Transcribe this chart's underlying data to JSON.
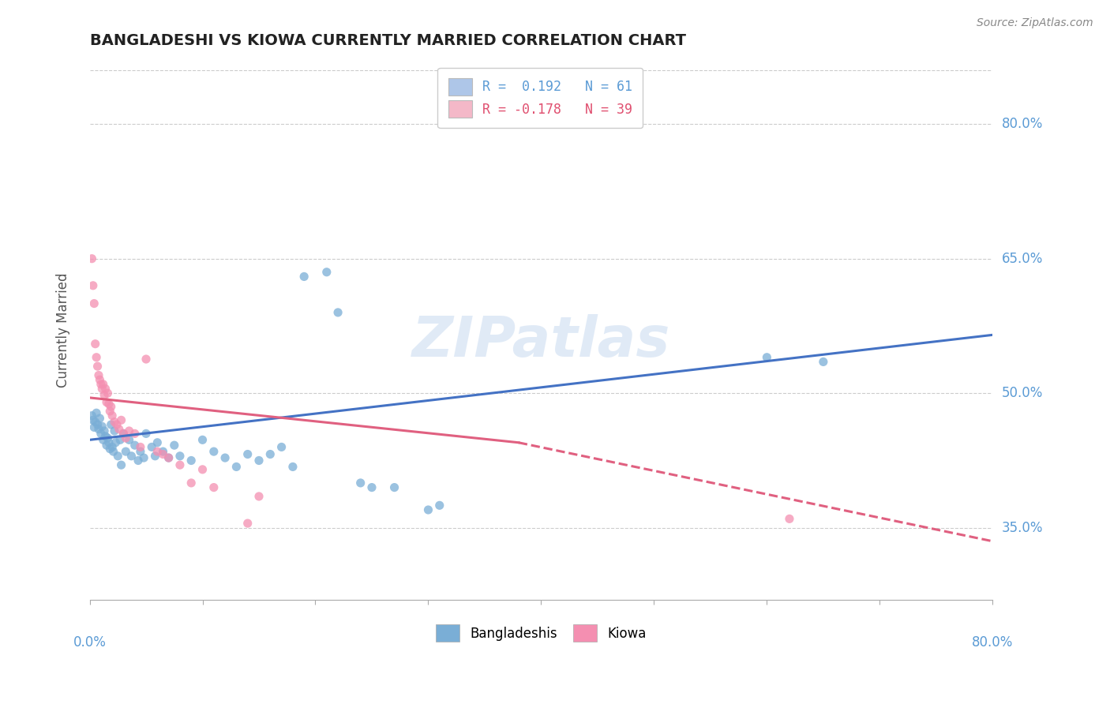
{
  "title": "BANGLADESHI VS KIOWA CURRENTLY MARRIED CORRELATION CHART",
  "source": "Source: ZipAtlas.com",
  "ylabel": "Currently Married",
  "y_ticks": [
    0.35,
    0.5,
    0.65,
    0.8
  ],
  "y_tick_labels": [
    "35.0%",
    "50.0%",
    "65.0%",
    "80.0%"
  ],
  "x_range": [
    0.0,
    0.8
  ],
  "y_range": [
    0.27,
    0.87
  ],
  "legend_entries": [
    {
      "label": "R =  0.192   N = 61",
      "color": "#aec6e8"
    },
    {
      "label": "R = -0.178   N = 39",
      "color": "#f4b8c8"
    }
  ],
  "legend_bottom": [
    "Bangladeshis",
    "Kiowa"
  ],
  "blue_scatter_color": "#7aaed6",
  "pink_scatter_color": "#f48fb1",
  "blue_line_color": "#4472c4",
  "pink_line_color": "#e06080",
  "watermark": "ZIPatlas",
  "blue_points": [
    [
      0.002,
      0.475
    ],
    [
      0.003,
      0.47
    ],
    [
      0.004,
      0.462
    ],
    [
      0.005,
      0.468
    ],
    [
      0.006,
      0.478
    ],
    [
      0.007,
      0.465
    ],
    [
      0.008,
      0.46
    ],
    [
      0.009,
      0.472
    ],
    [
      0.01,
      0.455
    ],
    [
      0.011,
      0.463
    ],
    [
      0.012,
      0.448
    ],
    [
      0.013,
      0.458
    ],
    [
      0.014,
      0.452
    ],
    [
      0.015,
      0.442
    ],
    [
      0.016,
      0.45
    ],
    [
      0.017,
      0.445
    ],
    [
      0.018,
      0.438
    ],
    [
      0.019,
      0.465
    ],
    [
      0.02,
      0.44
    ],
    [
      0.021,
      0.435
    ],
    [
      0.022,
      0.458
    ],
    [
      0.023,
      0.445
    ],
    [
      0.025,
      0.43
    ],
    [
      0.027,
      0.448
    ],
    [
      0.028,
      0.42
    ],
    [
      0.03,
      0.455
    ],
    [
      0.032,
      0.435
    ],
    [
      0.035,
      0.448
    ],
    [
      0.037,
      0.43
    ],
    [
      0.04,
      0.442
    ],
    [
      0.043,
      0.425
    ],
    [
      0.045,
      0.435
    ],
    [
      0.048,
      0.428
    ],
    [
      0.05,
      0.455
    ],
    [
      0.055,
      0.44
    ],
    [
      0.058,
      0.43
    ],
    [
      0.06,
      0.445
    ],
    [
      0.065,
      0.435
    ],
    [
      0.07,
      0.428
    ],
    [
      0.075,
      0.442
    ],
    [
      0.08,
      0.43
    ],
    [
      0.09,
      0.425
    ],
    [
      0.1,
      0.448
    ],
    [
      0.11,
      0.435
    ],
    [
      0.12,
      0.428
    ],
    [
      0.13,
      0.418
    ],
    [
      0.14,
      0.432
    ],
    [
      0.15,
      0.425
    ],
    [
      0.16,
      0.432
    ],
    [
      0.17,
      0.44
    ],
    [
      0.18,
      0.418
    ],
    [
      0.19,
      0.63
    ],
    [
      0.21,
      0.635
    ],
    [
      0.22,
      0.59
    ],
    [
      0.24,
      0.4
    ],
    [
      0.25,
      0.395
    ],
    [
      0.27,
      0.395
    ],
    [
      0.3,
      0.37
    ],
    [
      0.31,
      0.375
    ],
    [
      0.6,
      0.54
    ],
    [
      0.65,
      0.535
    ]
  ],
  "pink_points": [
    [
      0.002,
      0.65
    ],
    [
      0.003,
      0.62
    ],
    [
      0.004,
      0.6
    ],
    [
      0.005,
      0.555
    ],
    [
      0.006,
      0.54
    ],
    [
      0.007,
      0.53
    ],
    [
      0.008,
      0.52
    ],
    [
      0.009,
      0.515
    ],
    [
      0.01,
      0.51
    ],
    [
      0.011,
      0.505
    ],
    [
      0.012,
      0.51
    ],
    [
      0.013,
      0.498
    ],
    [
      0.014,
      0.505
    ],
    [
      0.015,
      0.49
    ],
    [
      0.016,
      0.5
    ],
    [
      0.017,
      0.488
    ],
    [
      0.018,
      0.48
    ],
    [
      0.019,
      0.485
    ],
    [
      0.02,
      0.475
    ],
    [
      0.022,
      0.468
    ],
    [
      0.024,
      0.465
    ],
    [
      0.026,
      0.46
    ],
    [
      0.028,
      0.47
    ],
    [
      0.03,
      0.455
    ],
    [
      0.032,
      0.45
    ],
    [
      0.035,
      0.458
    ],
    [
      0.04,
      0.455
    ],
    [
      0.045,
      0.44
    ],
    [
      0.05,
      0.538
    ],
    [
      0.06,
      0.435
    ],
    [
      0.065,
      0.432
    ],
    [
      0.07,
      0.428
    ],
    [
      0.08,
      0.42
    ],
    [
      0.09,
      0.4
    ],
    [
      0.1,
      0.415
    ],
    [
      0.11,
      0.395
    ],
    [
      0.14,
      0.355
    ],
    [
      0.15,
      0.385
    ],
    [
      0.62,
      0.36
    ]
  ],
  "blue_trend": {
    "x_start": 0.0,
    "y_start": 0.448,
    "x_end": 0.8,
    "y_end": 0.565
  },
  "pink_trend": {
    "x_start": 0.0,
    "y_start": 0.495,
    "x_end": 0.38,
    "y_end": 0.445
  },
  "pink_trend_dashed": {
    "x_start": 0.38,
    "y_start": 0.445,
    "x_end": 0.8,
    "y_end": 0.335
  }
}
